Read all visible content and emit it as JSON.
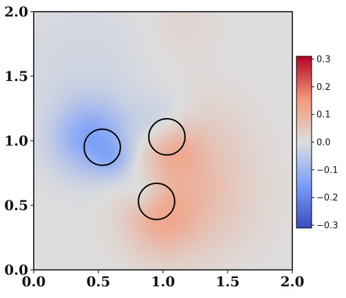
{
  "chart_data": {
    "type": "heatmap",
    "title": "",
    "xlabel": "",
    "ylabel": "",
    "xlim": [
      0.0,
      2.0
    ],
    "ylim": [
      0.0,
      2.0
    ],
    "xticks": [
      "0.0",
      "0.5",
      "1.0",
      "1.5",
      "2.0"
    ],
    "yticks": [
      "0.0",
      "0.5",
      "1.0",
      "1.5",
      "2.0"
    ],
    "xtick_values": [
      0.0,
      0.5,
      1.0,
      1.5,
      2.0
    ],
    "ytick_values": [
      0.0,
      0.5,
      1.0,
      1.5,
      2.0
    ],
    "colormap": "coolwarm",
    "colormap_stops": [
      "#3b4cc0",
      "#7b9ff9",
      "#dddddd",
      "#f49a7b",
      "#b40426"
    ],
    "colorbar": {
      "vmin": -0.31,
      "vmax": 0.31,
      "ticks": [
        0.3,
        0.2,
        0.1,
        0.0,
        -0.1,
        -0.2,
        -0.3
      ],
      "tick_labels": [
        "0.3",
        "0.2",
        "0.1",
        "0.0",
        "−0.1",
        "−0.2",
        "−0.3"
      ]
    },
    "circles": [
      {
        "cx": 0.53,
        "cy": 0.95,
        "r": 0.14
      },
      {
        "cx": 1.03,
        "cy": 1.03,
        "r": 0.14
      },
      {
        "cx": 0.95,
        "cy": 0.53,
        "r": 0.14
      }
    ],
    "sources": [
      {
        "x": 0.45,
        "y": 1.02,
        "amp": -0.14,
        "spread": 0.2
      },
      {
        "x": 0.62,
        "y": 0.86,
        "amp": -0.06,
        "spread": 0.1
      },
      {
        "x": 1.0,
        "y": 1.13,
        "amp": -0.06,
        "spread": 0.16
      },
      {
        "x": 1.07,
        "y": 0.95,
        "amp": 0.08,
        "spread": 0.15
      },
      {
        "x": 1.22,
        "y": 0.92,
        "amp": 0.05,
        "spread": 0.3
      },
      {
        "x": 0.98,
        "y": 0.38,
        "amp": 0.09,
        "spread": 0.2
      },
      {
        "x": 1.3,
        "y": 0.5,
        "amp": 0.05,
        "spread": 0.3
      },
      {
        "x": 0.85,
        "y": 0.62,
        "amp": -0.05,
        "spread": 0.1
      },
      {
        "x": 1.15,
        "y": 1.9,
        "amp": 0.02,
        "spread": 0.2
      },
      {
        "x": 0.4,
        "y": 1.55,
        "amp": -0.02,
        "spread": 0.4
      }
    ]
  }
}
